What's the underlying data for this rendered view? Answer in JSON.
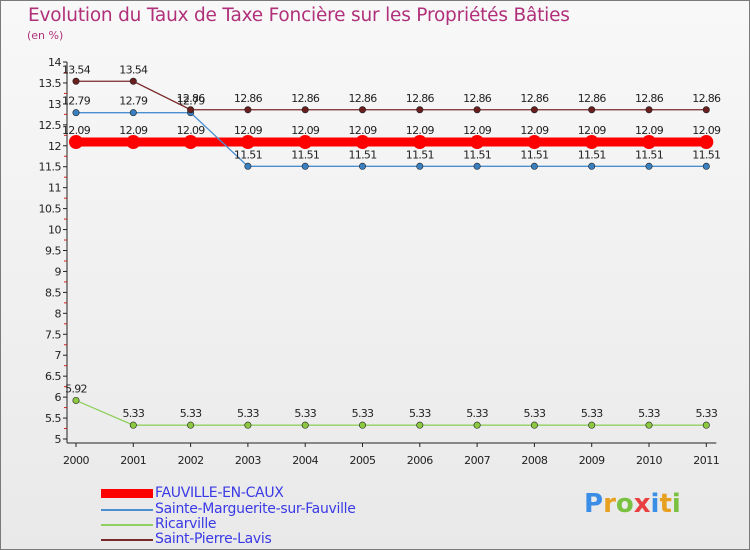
{
  "header": {
    "title": "Evolution du Taux de Taxe Foncière sur les Propriétés Bâties",
    "unit": "(en %)"
  },
  "logo": {
    "letters": [
      "P",
      "r",
      "o",
      "x",
      "i",
      "t",
      "i"
    ],
    "colors": [
      "#3a8ee6",
      "#e8a020",
      "#7ac142",
      "#e84040",
      "#3a8ee6",
      "#e8a020",
      "#7ac142"
    ]
  },
  "chart_data": {
    "type": "line",
    "title": "Evolution du Taux de Taxe Foncière sur les Propriétés Bâties",
    "ylabel": "(en %)",
    "xlabel": "",
    "ylim": [
      5,
      14
    ],
    "yticks": [
      "5",
      "5.5",
      "6",
      "6.5",
      "7",
      "7.5",
      "8",
      "8.5",
      "9",
      "9.5",
      "10",
      "10.5",
      "11",
      "11.5",
      "12",
      "12.5",
      "13",
      "13.5",
      "14"
    ],
    "categories": [
      "2000",
      "2001",
      "2002",
      "2003",
      "2004",
      "2005",
      "2006",
      "2007",
      "2008",
      "2009",
      "2010",
      "2011"
    ],
    "series": [
      {
        "name": "FAUVILLE-EN-CAUX",
        "color": "#ff0000",
        "bold": true,
        "values": [
          12.09,
          12.09,
          12.09,
          12.09,
          12.09,
          12.09,
          12.09,
          12.09,
          12.09,
          12.09,
          12.09,
          12.09
        ],
        "labels": [
          "12.09",
          "12.09",
          "12.09",
          "12.09",
          "12.09",
          "12.09",
          "12.09",
          "12.09",
          "12.09",
          "12.09",
          "12.09",
          "12.09"
        ]
      },
      {
        "name": "Sainte-Marguerite-sur-Fauville",
        "color": "#4a90d0",
        "marker": "#3a7fc0",
        "bold": false,
        "values": [
          12.79,
          12.79,
          12.79,
          11.51,
          11.51,
          11.51,
          11.51,
          11.51,
          11.51,
          11.51,
          11.51,
          11.51
        ],
        "labels": [
          "12.79",
          "12.79",
          "12.79",
          "11.51",
          "11.51",
          "11.51",
          "11.51",
          "11.51",
          "11.51",
          "11.51",
          "11.51",
          "11.51"
        ]
      },
      {
        "name": "Ricarville",
        "color": "#90d060",
        "marker": "#8cc840",
        "bold": false,
        "values": [
          5.92,
          5.33,
          5.33,
          5.33,
          5.33,
          5.33,
          5.33,
          5.33,
          5.33,
          5.33,
          5.33,
          5.33
        ],
        "labels": [
          "5.92",
          "5.33",
          "5.33",
          "5.33",
          "5.33",
          "5.33",
          "5.33",
          "5.33",
          "5.33",
          "5.33",
          "5.33",
          "5.33"
        ]
      },
      {
        "name": "Saint-Pierre-Lavis",
        "color": "#7a2a2a",
        "marker": "#6a1e1e",
        "bold": false,
        "values": [
          13.54,
          13.54,
          12.86,
          12.86,
          12.86,
          12.86,
          12.86,
          12.86,
          12.86,
          12.86,
          12.86,
          12.86
        ],
        "labels": [
          "13.54",
          "13.54",
          "12.86",
          "12.86",
          "12.86",
          "12.86",
          "12.86",
          "12.86",
          "12.86",
          "12.86",
          "12.86",
          "12.86"
        ]
      }
    ],
    "legend_position": "bottom-left"
  }
}
